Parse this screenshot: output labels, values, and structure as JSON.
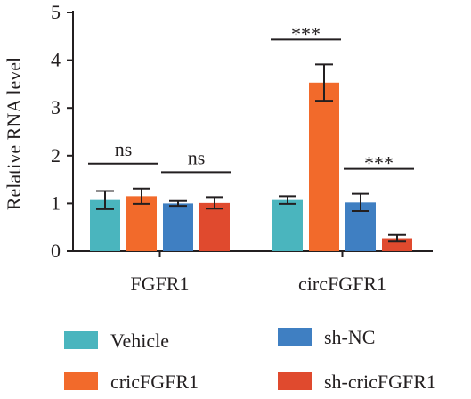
{
  "chart_data": {
    "type": "bar",
    "title": "",
    "xlabel": "",
    "ylabel": "Relative RNA level",
    "ylim": [
      0,
      5
    ],
    "yticks": [
      0,
      1,
      2,
      3,
      4,
      5
    ],
    "grid": false,
    "legend_position": "bottom",
    "categories": [
      "FGFR1",
      "circFGFR1"
    ],
    "series": [
      {
        "name": "Vehicle",
        "color": "#4ab5be",
        "values": [
          1.07,
          1.07
        ],
        "errors": [
          0.19,
          0.08
        ]
      },
      {
        "name": "cricFGFR1",
        "color": "#f26a2b",
        "values": [
          1.15,
          3.53
        ],
        "errors": [
          0.16,
          0.38
        ]
      },
      {
        "name": "sh-NC",
        "color": "#3f7fc2",
        "values": [
          1.0,
          1.02
        ],
        "errors": [
          0.05,
          0.18
        ]
      },
      {
        "name": "sh-cricFGFR1",
        "color": "#e04a2e",
        "values": [
          1.01,
          0.27
        ],
        "errors": [
          0.12,
          0.07
        ]
      }
    ],
    "annotations": [
      {
        "category": 0,
        "from_series": 0,
        "to_series": 1,
        "label": "ns"
      },
      {
        "category": 0,
        "from_series": 2,
        "to_series": 3,
        "label": "ns"
      },
      {
        "category": 1,
        "from_series": 0,
        "to_series": 1,
        "label": "***"
      },
      {
        "category": 1,
        "from_series": 2,
        "to_series": 3,
        "label": "***"
      }
    ]
  }
}
